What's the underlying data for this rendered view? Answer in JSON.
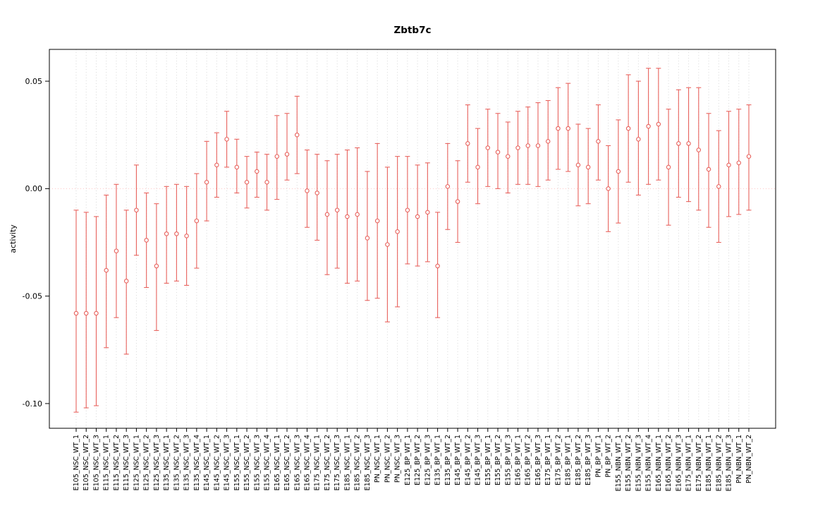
{
  "figure": {
    "title": "Zbtb7c",
    "ylabel": "activity"
  },
  "chart_data": {
    "type": "scatter",
    "subtype": "point-with-error-bars",
    "title": "Zbtb7c",
    "xlabel": "",
    "ylabel": "activity",
    "ylim": [
      -0.1115,
      0.0648
    ],
    "yticks": [
      {
        "value": 0.05,
        "label": "0.05"
      },
      {
        "value": 0.0,
        "label": "0.00"
      },
      {
        "value": -0.05,
        "label": "-0.05"
      },
      {
        "value": -0.1,
        "label": "-0.10"
      }
    ],
    "grid": "vertical-dotted",
    "reference_line_y": 0,
    "legend_position": "none",
    "colors": {
      "series": "#e8635e",
      "zero_line": "#ffc4c4",
      "grid": "#dadada",
      "axis": "#000000"
    },
    "categories": [
      "E105_NSC_WT_1",
      "E105_NSC_WT_2",
      "E105_NSC_WT_3",
      "E115_NSC_WT_1",
      "E115_NSC_WT_2",
      "E115_NSC_WT_3",
      "E125_NSC_WT_1",
      "E125_NSC_WT_2",
      "E125_NSC_WT_3",
      "E135_NSC_WT_1",
      "E135_NSC_WT_2",
      "E135_NSC_WT_3",
      "E135_NSC_WT_4",
      "E145_NSC_WT_1",
      "E145_NSC_WT_2",
      "E145_NSC_WT_3",
      "E155_NSC_WT_1",
      "E155_NSC_WT_2",
      "E155_NSC_WT_3",
      "E155_NSC_WT_4",
      "E165_NSC_WT_1",
      "E165_NSC_WT_2",
      "E165_NSC_WT_3",
      "E165_NSC_WT_4",
      "E175_NSC_WT_1",
      "E175_NSC_WT_2",
      "E175_NSC_WT_3",
      "E185_NSC_WT_1",
      "E185_NSC_WT_2",
      "E185_NSC_WT_3",
      "PN_NSC_WT_1",
      "PN_NSC_WT_2",
      "PN_NSC_WT_3",
      "E125_BP_WT_1",
      "E125_BP_WT_2",
      "E125_BP_WT_3",
      "E135_BP_WT_1",
      "E135_BP_WT_2",
      "E145_BP_WT_1",
      "E145_BP_WT_2",
      "E145_BP_WT_3",
      "E155_BP_WT_1",
      "E155_BP_WT_2",
      "E155_BP_WT_3",
      "E165_BP_WT_1",
      "E165_BP_WT_2",
      "E165_BP_WT_3",
      "E175_BP_WT_1",
      "E175_BP_WT_2",
      "E185_BP_WT_1",
      "E185_BP_WT_2",
      "E185_BP_WT_3",
      "PN_BP_WT_1",
      "PN_BP_WT_2",
      "E155_NBN_WT_1",
      "E155_NBN_WT_2",
      "E155_NBN_WT_3",
      "E155_NBN_WT_4",
      "E165_NBN_WT_1",
      "E165_NBN_WT_2",
      "E165_NBN_WT_3",
      "E175_NBN_WT_1",
      "E175_NBN_WT_2",
      "E185_NBN_WT_1",
      "E185_NBN_WT_2",
      "E185_NBN_WT_3",
      "PN_NBN_WT_1",
      "PN_NBN_WT_2"
    ],
    "series": [
      {
        "name": "activity",
        "means": [
          -0.058,
          -0.058,
          -0.058,
          -0.038,
          -0.029,
          -0.043,
          -0.01,
          -0.024,
          -0.036,
          -0.021,
          -0.021,
          -0.022,
          -0.015,
          0.003,
          0.011,
          0.023,
          0.01,
          0.003,
          0.008,
          0.003,
          0.015,
          0.016,
          0.025,
          -0.001,
          -0.002,
          -0.012,
          -0.01,
          -0.013,
          -0.012,
          -0.023,
          -0.015,
          -0.026,
          -0.02,
          -0.01,
          -0.013,
          -0.011,
          -0.036,
          0.001,
          -0.006,
          0.021,
          0.01,
          0.019,
          0.017,
          0.015,
          0.019,
          0.02,
          0.02,
          0.022,
          0.028,
          0.028,
          0.011,
          0.01,
          0.022,
          0.0,
          0.008,
          0.028,
          0.023,
          0.029,
          0.03,
          0.01,
          0.021,
          0.021,
          0.018,
          0.009,
          0.001,
          0.011,
          0.012,
          0.015
        ],
        "ci_low": [
          -0.104,
          -0.102,
          -0.101,
          -0.074,
          -0.06,
          -0.077,
          -0.031,
          -0.046,
          -0.066,
          -0.044,
          -0.043,
          -0.045,
          -0.037,
          -0.015,
          -0.004,
          0.01,
          -0.002,
          -0.009,
          -0.004,
          -0.01,
          -0.005,
          0.004,
          0.007,
          -0.018,
          -0.024,
          -0.04,
          -0.037,
          -0.044,
          -0.043,
          -0.052,
          -0.051,
          -0.062,
          -0.055,
          -0.035,
          -0.036,
          -0.034,
          -0.06,
          -0.019,
          -0.025,
          0.003,
          -0.007,
          0.001,
          0.0,
          -0.002,
          0.002,
          0.002,
          0.001,
          0.004,
          0.009,
          0.008,
          -0.008,
          -0.007,
          0.004,
          -0.02,
          -0.016,
          0.003,
          -0.003,
          0.002,
          0.004,
          -0.017,
          -0.004,
          -0.006,
          -0.01,
          -0.018,
          -0.025,
          -0.013,
          -0.012,
          -0.01
        ],
        "ci_high": [
          -0.01,
          -0.011,
          -0.013,
          -0.003,
          0.002,
          -0.01,
          0.011,
          -0.002,
          -0.007,
          0.001,
          0.002,
          0.001,
          0.007,
          0.022,
          0.026,
          0.036,
          0.023,
          0.015,
          0.017,
          0.016,
          0.034,
          0.035,
          0.043,
          0.018,
          0.016,
          0.013,
          0.016,
          0.018,
          0.019,
          0.008,
          0.021,
          0.01,
          0.015,
          0.015,
          0.011,
          0.012,
          -0.011,
          0.021,
          0.013,
          0.039,
          0.028,
          0.037,
          0.035,
          0.031,
          0.036,
          0.038,
          0.04,
          0.041,
          0.047,
          0.049,
          0.03,
          0.028,
          0.039,
          0.02,
          0.032,
          0.053,
          0.05,
          0.056,
          0.056,
          0.037,
          0.046,
          0.047,
          0.047,
          0.035,
          0.027,
          0.036,
          0.037,
          0.039
        ]
      }
    ]
  }
}
